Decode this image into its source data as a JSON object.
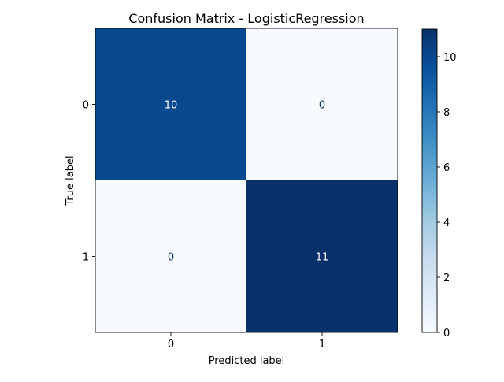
{
  "chart_data": {
    "type": "heatmap",
    "title": "Confusion Matrix - LogisticRegression",
    "xlabel": "Predicted label",
    "ylabel": "True label",
    "x_categories": [
      "0",
      "1"
    ],
    "y_categories": [
      "0",
      "1"
    ],
    "values": [
      [
        10,
        0
      ],
      [
        0,
        11
      ]
    ],
    "colormap": "Blues",
    "colorbar": {
      "range": [
        0,
        11
      ],
      "ticks": [
        0,
        2,
        4,
        6,
        8,
        10
      ],
      "low_color": "#f7fbff",
      "high_color": "#08306b"
    },
    "text_colors": {
      "on_dark": "#ffffff",
      "on_light": "#08306b"
    }
  }
}
